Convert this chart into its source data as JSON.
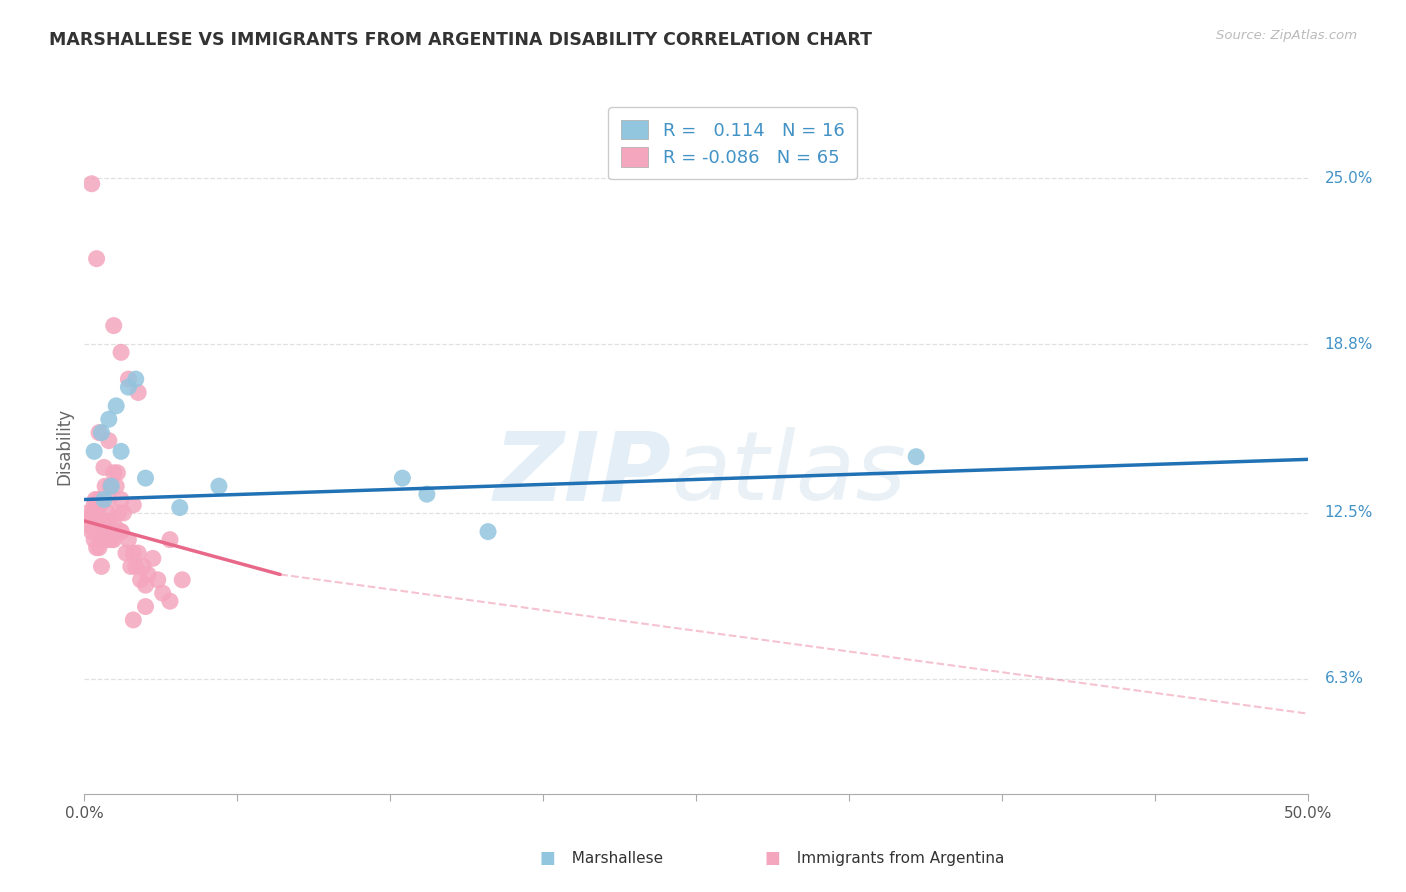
{
  "title": "MARSHALLESE VS IMMIGRANTS FROM ARGENTINA DISABILITY CORRELATION CHART",
  "source": "Source: ZipAtlas.com",
  "xlim": [
    0.0,
    50.0
  ],
  "ylim": [
    2.0,
    28.0
  ],
  "yticks_right": [
    6.3,
    12.5,
    18.8,
    25.0
  ],
  "ytick_labels_right": [
    "6.3%",
    "12.5%",
    "18.8%",
    "25.0%"
  ],
  "blue_label": "Marshallese",
  "pink_label": "Immigrants from Argentina",
  "legend_blue_r": "0.114",
  "legend_blue_n": "16",
  "legend_pink_r": "-0.086",
  "legend_pink_n": "65",
  "blue_scatter_color": "#92c5de",
  "pink_scatter_color": "#f4a6be",
  "blue_line_color": "#2171b5",
  "pink_line_color": "#e8688a",
  "watermark_color": "#d0e8f5",
  "background_color": "#ffffff",
  "grid_color": "#dddddd",
  "blue_line_y0": 13.0,
  "blue_line_y1": 14.5,
  "pink_solid_x0": 0.0,
  "pink_solid_y0": 12.2,
  "pink_solid_x1": 8.0,
  "pink_solid_y1": 10.2,
  "pink_dash_x0": 8.0,
  "pink_dash_y0": 10.2,
  "pink_dash_x1": 50.0,
  "pink_dash_y1": 5.0,
  "blue_x": [
    0.4,
    0.7,
    1.0,
    1.3,
    1.5,
    1.8,
    2.1,
    2.5,
    3.9,
    5.5,
    13.0,
    14.0,
    16.5,
    34.0,
    0.8,
    1.1
  ],
  "blue_y": [
    14.8,
    15.5,
    16.0,
    16.5,
    14.8,
    17.2,
    17.5,
    13.8,
    12.7,
    13.5,
    13.8,
    13.2,
    11.8,
    14.6,
    13.0,
    13.5
  ],
  "pink_x": [
    0.15,
    0.2,
    0.25,
    0.3,
    0.35,
    0.4,
    0.45,
    0.5,
    0.5,
    0.55,
    0.6,
    0.65,
    0.7,
    0.7,
    0.75,
    0.8,
    0.85,
    0.9,
    0.9,
    0.95,
    1.0,
    1.0,
    1.05,
    1.1,
    1.2,
    1.25,
    1.3,
    1.35,
    1.4,
    1.5,
    1.5,
    1.6,
    1.7,
    1.8,
    1.9,
    2.0,
    2.1,
    2.2,
    2.3,
    2.4,
    2.5,
    2.6,
    2.8,
    3.0,
    3.2,
    3.5,
    3.5,
    4.0,
    1.0,
    1.5,
    2.0,
    2.5,
    0.5,
    1.2,
    1.8,
    2.2,
    0.6,
    0.8,
    1.0,
    1.5,
    2.0,
    1.2,
    0.7,
    0.4,
    0.3
  ],
  "pink_y": [
    12.5,
    12.3,
    12.0,
    11.8,
    12.5,
    11.5,
    13.0,
    11.2,
    12.5,
    13.0,
    11.2,
    12.8,
    11.5,
    10.5,
    12.2,
    12.0,
    13.5,
    11.5,
    12.0,
    12.5,
    13.0,
    11.8,
    13.5,
    11.5,
    14.0,
    12.0,
    13.5,
    14.0,
    12.5,
    13.0,
    11.8,
    12.5,
    11.0,
    11.5,
    10.5,
    11.0,
    10.5,
    11.0,
    10.0,
    10.5,
    9.8,
    10.2,
    10.8,
    10.0,
    9.5,
    9.2,
    11.5,
    10.0,
    15.2,
    18.5,
    8.5,
    9.0,
    22.0,
    19.5,
    17.5,
    17.0,
    15.5,
    14.2,
    12.2,
    11.8,
    12.8,
    11.5,
    12.2,
    12.8,
    24.8
  ]
}
